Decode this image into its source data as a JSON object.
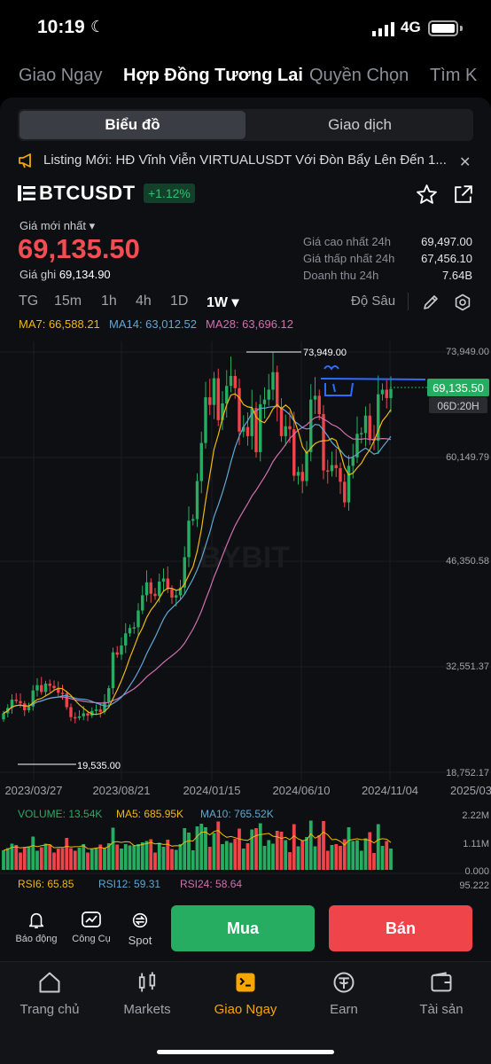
{
  "status": {
    "time": "10:19",
    "network": "4G"
  },
  "top_nav": [
    "Giao Ngay",
    "Hợp Đồng Tương Lai",
    "Quyền Chọn",
    "Tìm K"
  ],
  "segment": {
    "chart": "Biểu đồ",
    "trade": "Giao dịch"
  },
  "announcement": "Listing Mới: HĐ Vĩnh Viễn VIRTUALUSDT Với Đòn Bẩy Lên Đến 1...",
  "symbol": {
    "name": "BTCUSDT",
    "change": "+1.12%"
  },
  "price": {
    "last_label": "Giá mới nhất",
    "last": "69,135.50",
    "mark_label": "Giá ghi",
    "mark": "69,134.90"
  },
  "stats": [
    {
      "label": "Giá cao nhất 24h",
      "value": "69,497.00"
    },
    {
      "label": "Giá thấp nhất 24h",
      "value": "67,456.10"
    },
    {
      "label": "Doanh thu 24h",
      "value": "7.64B"
    }
  ],
  "intervals": [
    "TG",
    "15m",
    "1h",
    "4h",
    "1D",
    "1W"
  ],
  "active_interval": "1W",
  "depth_label": "Độ Sâu",
  "ma": {
    "ma7": "MA7: 66,588.21",
    "ma14": "MA14: 63,012.52",
    "ma28": "MA28: 63,696.12"
  },
  "colors": {
    "up": "#27ad62",
    "down": "#ef454a",
    "accent": "#f7a600",
    "ma7": "#f0b90b",
    "ma14": "#5fa8d3",
    "ma28": "#d070b0"
  },
  "chart_data": {
    "type": "candlestick",
    "y_ticks": [
      "73,949.00",
      "60,149.79",
      "46,350.58",
      "32,551.37",
      "18,752.17"
    ],
    "x_ticks": [
      "2023/03/27",
      "2023/08/21",
      "2024/01/15",
      "2024/06/10",
      "2024/11/04",
      "2025/03"
    ],
    "high_label": "73,949.00",
    "low_label": "19,535.00",
    "current_price": "69,135.50",
    "countdown": "06D:20H",
    "ylim": [
      18752.17,
      73949
    ],
    "closes": [
      26500,
      27200,
      28300,
      28100,
      27800,
      26900,
      27400,
      29500,
      30200,
      29300,
      30400,
      30100,
      29800,
      29200,
      29100,
      27300,
      26000,
      25900,
      26100,
      26500,
      26200,
      26800,
      27000,
      26700,
      28000,
      29800,
      34500,
      34200,
      35400,
      37000,
      37700,
      37800,
      40000,
      42000,
      43700,
      42200,
      41900,
      43800,
      44200,
      42800,
      41700,
      42000,
      43000,
      47000,
      51800,
      52000,
      57000,
      62000,
      68000,
      67000,
      70500,
      65000,
      67200,
      69500,
      70800,
      69200,
      63500,
      64100,
      62900,
      66600,
      60800,
      67100,
      67700,
      69000,
      71300,
      66700,
      62900,
      64200,
      63800,
      57700,
      58200,
      57000,
      60800,
      67700,
      68200,
      65800,
      58400,
      58300,
      59100,
      58700,
      56900,
      54200,
      59000,
      60100,
      63200,
      63300,
      65600,
      62500,
      62300,
      68400,
      69000,
      67900,
      69100
    ],
    "volume": {
      "label": "VOLUME: 13.54K",
      "ma5": "MA5: 685.95K",
      "ma10": "MA10: 765.52K",
      "ticks": [
        "2.22M",
        "1.11M",
        "0.000"
      ]
    },
    "rsi": {
      "rsi6": "RSI6: 65.85",
      "rsi12": "RSI12: 59.31",
      "rsi24": "RSI24: 58.64",
      "tick": "95.222"
    },
    "watermark": "BYBIT"
  },
  "actions": {
    "buy": "Mua",
    "sell": "Bán"
  },
  "tools": [
    "Báo động",
    "Công Cụ",
    "Spot"
  ],
  "tabs": [
    "Trang chủ",
    "Markets",
    "Giao Ngay",
    "Earn",
    "Tài sản"
  ],
  "active_tab": "Giao Ngay"
}
